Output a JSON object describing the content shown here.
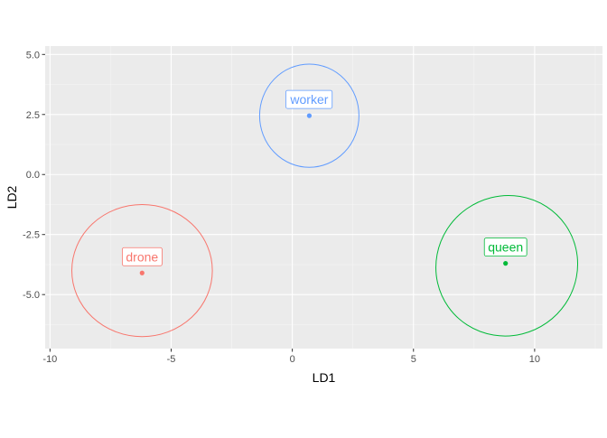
{
  "chart_data": {
    "type": "scatter",
    "title": "",
    "xlabel": "LD1",
    "ylabel": "LD2",
    "xlim": [
      -10.2,
      12.8
    ],
    "ylim": [
      -7.25,
      5.35
    ],
    "x_ticks": [
      -10,
      -5,
      0,
      5,
      10
    ],
    "x_tick_labels": [
      "-10",
      "-5",
      "0",
      "5",
      "10"
    ],
    "y_ticks": [
      5.0,
      2.5,
      0.0,
      -2.5,
      -5.0
    ],
    "y_tick_labels": [
      "5.0",
      "2.5",
      "0.0",
      "-2.5",
      "-5.0"
    ],
    "grid": true,
    "legend": "none",
    "series": [
      {
        "name": "drone",
        "color": "#F8766D",
        "x": -6.2,
        "y": -4.1,
        "ellipse": {
          "cx": -6.2,
          "cy": -4.0,
          "rx": 2.9,
          "ry": 2.75,
          "rotation_deg": 0
        }
      },
      {
        "name": "queen",
        "color": "#00BA38",
        "x": 8.8,
        "y": -3.7,
        "ellipse": {
          "cx": 8.85,
          "cy": -3.8,
          "rx": 2.95,
          "ry": 2.9,
          "rotation_deg": -35
        }
      },
      {
        "name": "worker",
        "color": "#619CFF",
        "x": 0.7,
        "y": 2.45,
        "ellipse": {
          "cx": 0.7,
          "cy": 2.45,
          "rx": 2.05,
          "ry": 2.15,
          "rotation_deg": 0
        }
      }
    ]
  }
}
